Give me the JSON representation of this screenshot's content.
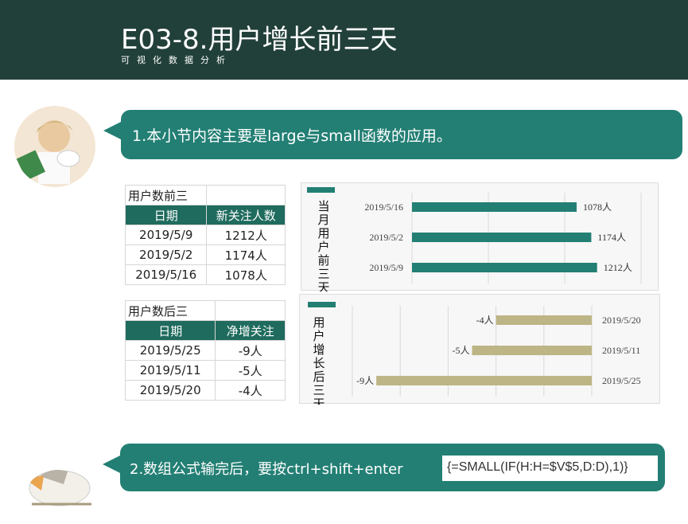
{
  "header": {
    "title": "E03-8.用户增长前三天",
    "subtitle": "可视化数据分析"
  },
  "bubble1": {
    "text": "1.本小节内容主要是large与small函数的应用。"
  },
  "bubble2": {
    "text": "2.数组公式输完后，要按ctrl+shift+enter",
    "formula": "{=SMALL(IF(H:H=$V$5,D:D),1)}"
  },
  "table_top": {
    "title": "用户数前三",
    "headers": [
      "日期",
      "新关注人数"
    ],
    "rows": [
      [
        "2019/5/9",
        "1212人"
      ],
      [
        "2019/5/2",
        "1174人"
      ],
      [
        "2019/5/16",
        "1078人"
      ]
    ]
  },
  "table_bottom": {
    "title": "用户数后三",
    "headers": [
      "日期",
      "净增关注"
    ],
    "rows": [
      [
        "2019/5/25",
        "-9人"
      ],
      [
        "2019/5/11",
        "-5人"
      ],
      [
        "2019/5/20",
        "-4人"
      ]
    ]
  },
  "colors": {
    "header": "#22403a",
    "accent": "#237f74",
    "negative_bar": "#bdb585"
  },
  "chart_data": [
    {
      "type": "bar",
      "orientation": "horizontal",
      "title": "当月用户前三天",
      "categories": [
        "2019/5/16",
        "2019/5/2",
        "2019/5/9"
      ],
      "values": [
        1078,
        1174,
        1212
      ],
      "data_labels": [
        "1078人",
        "1174人",
        "1212人"
      ],
      "xlim": [
        0,
        1500
      ],
      "grid": true,
      "color": "#237f74"
    },
    {
      "type": "bar",
      "orientation": "horizontal",
      "title": "用户增长后三天",
      "categories": [
        "2019/5/20",
        "2019/5/11",
        "2019/5/25"
      ],
      "values": [
        -4,
        -5,
        -9
      ],
      "data_labels": [
        "-4人",
        "-5人",
        "-9人"
      ],
      "xlim": [
        -10,
        0
      ],
      "grid": true,
      "color": "#bdb585"
    }
  ]
}
